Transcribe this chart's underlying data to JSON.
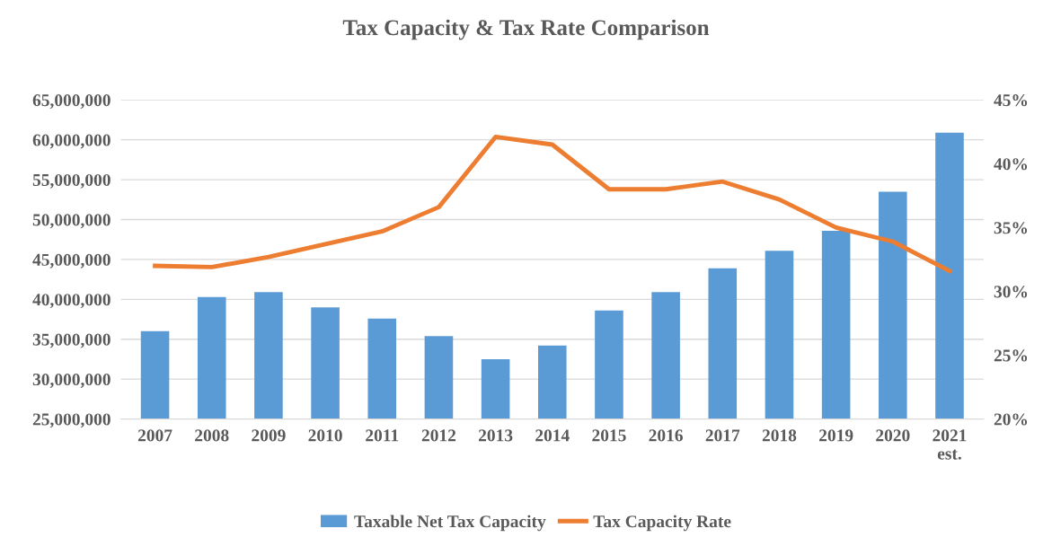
{
  "chart_data": {
    "type": "bar",
    "title": "Tax Capacity & Tax Rate Comparison",
    "categories": [
      "2007",
      "2008",
      "2009",
      "2010",
      "2011",
      "2012",
      "2013",
      "2014",
      "2015",
      "2016",
      "2017",
      "2018",
      "2019",
      "2020",
      "2021\nest."
    ],
    "series": [
      {
        "name": "Taxable Net Tax Capacity",
        "color": "#5b9bd5",
        "values": [
          36000000,
          40300000,
          40900000,
          39000000,
          37600000,
          35400000,
          32500000,
          34200000,
          38600000,
          40900000,
          43900000,
          46100000,
          48600000,
          53500000,
          60900000
        ]
      },
      {
        "name": "Tax Capacity Rate",
        "type": "line",
        "axis": "y2",
        "color": "#ed7d31",
        "values": [
          32.0,
          31.9,
          32.7,
          33.7,
          34.7,
          36.6,
          42.1,
          41.5,
          38.0,
          38.0,
          38.6,
          37.2,
          35.0,
          33.9,
          31.6
        ]
      }
    ],
    "ylim": [
      25000000,
      65000000
    ],
    "yticks": [
      {
        "value": 25000000,
        "label": "25,000,000"
      },
      {
        "value": 30000000,
        "label": "30,000,000"
      },
      {
        "value": 35000000,
        "label": "35,000,000"
      },
      {
        "value": 40000000,
        "label": "40,000,000"
      },
      {
        "value": 45000000,
        "label": "45,000,000"
      },
      {
        "value": 50000000,
        "label": "50,000,000"
      },
      {
        "value": 55000000,
        "label": "55,000,000"
      },
      {
        "value": 60000000,
        "label": "60,000,000"
      },
      {
        "value": 65000000,
        "label": "65,000,000"
      }
    ],
    "y2lim": [
      20,
      45
    ],
    "y2ticks": [
      {
        "value": 20,
        "label": "20%"
      },
      {
        "value": 25,
        "label": "25%"
      },
      {
        "value": 30,
        "label": "30%"
      },
      {
        "value": 35,
        "label": "35%"
      },
      {
        "value": 40,
        "label": "40%"
      },
      {
        "value": 45,
        "label": "45%"
      }
    ],
    "grid": "y",
    "legend": "bottom",
    "marker": "none",
    "line_style": "solid"
  }
}
